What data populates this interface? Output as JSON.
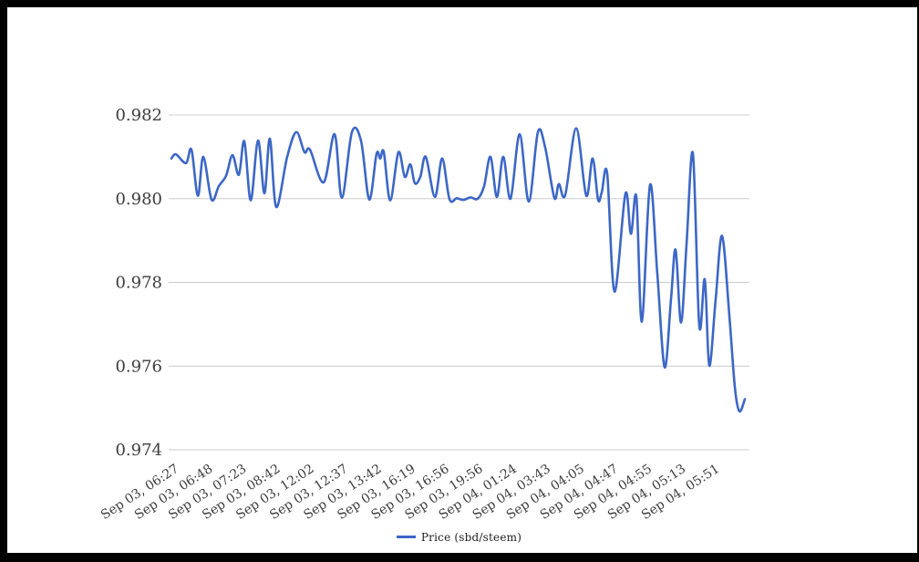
{
  "window": {
    "frame_color": "#000000",
    "canvas_background": "#ffffff"
  },
  "style": {
    "axis_label_color": "#3d3d3d",
    "grid_color": "#cccccc",
    "legend_text_color": "#222222"
  },
  "chart_data": {
    "type": "line",
    "title": "",
    "xlabel": "",
    "ylabel": "",
    "grid": true,
    "legend_position": "bottom",
    "ylim": [
      0.974,
      0.982
    ],
    "y_ticks": [
      "0.974",
      "0.976",
      "0.978",
      "0.980",
      "0.982"
    ],
    "x_tick_labels": [
      "Sep 03, 06:27",
      "Sep 03, 06:48",
      "Sep 03, 07:23",
      "Sep 03, 08:42",
      "Sep 03, 12:02",
      "Sep 03, 12:37",
      "Sep 03, 13:42",
      "Sep 03, 16:19",
      "Sep 03, 16:56",
      "Sep 03, 19:56",
      "Sep 04, 01:24",
      "Sep 04, 03:43",
      "Sep 04, 04:05",
      "Sep 04, 04:47",
      "Sep 04, 04:55",
      "Sep 04, 05:13",
      "Sep 04, 05:51"
    ],
    "series": [
      {
        "name": "Price (sbd/steem)",
        "color": "#3d67c6",
        "points": [
          [
            0.0,
            0.98096
          ],
          [
            0.0079,
            0.98106
          ],
          [
            0.0254,
            0.98085
          ],
          [
            0.035,
            0.98117
          ],
          [
            0.0461,
            0.98007
          ],
          [
            0.0556,
            0.981
          ],
          [
            0.07,
            0.97998
          ],
          [
            0.0827,
            0.9803
          ],
          [
            0.0954,
            0.98055
          ],
          [
            0.1065,
            0.98104
          ],
          [
            0.1177,
            0.98057
          ],
          [
            0.1272,
            0.98137
          ],
          [
            0.1383,
            0.97996
          ],
          [
            0.151,
            0.98139
          ],
          [
            0.1622,
            0.98013
          ],
          [
            0.1717,
            0.98143
          ],
          [
            0.1828,
            0.9798
          ],
          [
            0.2019,
            0.981
          ],
          [
            0.2178,
            0.98159
          ],
          [
            0.2321,
            0.98111
          ],
          [
            0.2416,
            0.98117
          ],
          [
            0.2655,
            0.98039
          ],
          [
            0.2846,
            0.98154
          ],
          [
            0.2973,
            0.98002
          ],
          [
            0.3148,
            0.98159
          ],
          [
            0.3307,
            0.98138
          ],
          [
            0.345,
            0.97998
          ],
          [
            0.3577,
            0.98107
          ],
          [
            0.3641,
            0.98096
          ],
          [
            0.3704,
            0.98111
          ],
          [
            0.3816,
            0.97996
          ],
          [
            0.3959,
            0.98111
          ],
          [
            0.407,
            0.98052
          ],
          [
            0.4166,
            0.98082
          ],
          [
            0.4245,
            0.98037
          ],
          [
            0.434,
            0.98052
          ],
          [
            0.4436,
            0.981
          ],
          [
            0.4595,
            0.98004
          ],
          [
            0.4722,
            0.98096
          ],
          [
            0.4849,
            0.97999
          ],
          [
            0.4976,
            0.98001
          ],
          [
            0.5087,
            0.97997
          ],
          [
            0.5215,
            0.98003
          ],
          [
            0.5342,
            0.98
          ],
          [
            0.5453,
            0.9803
          ],
          [
            0.5564,
            0.981
          ],
          [
            0.5676,
            0.98004
          ],
          [
            0.5787,
            0.981
          ],
          [
            0.5914,
            0.98
          ],
          [
            0.6073,
            0.98154
          ],
          [
            0.6232,
            0.97993
          ],
          [
            0.6391,
            0.98159
          ],
          [
            0.6518,
            0.98122
          ],
          [
            0.6677,
            0.98002
          ],
          [
            0.6757,
            0.98035
          ],
          [
            0.6868,
            0.98009
          ],
          [
            0.7059,
            0.98168
          ],
          [
            0.7234,
            0.98007
          ],
          [
            0.7345,
            0.98096
          ],
          [
            0.744,
            0.97998
          ],
          [
            0.7504,
            0.98015
          ],
          [
            0.7599,
            0.9806
          ],
          [
            0.7726,
            0.97778
          ],
          [
            0.7917,
            0.98012
          ],
          [
            0.8013,
            0.97916
          ],
          [
            0.8108,
            0.98004
          ],
          [
            0.8203,
            0.97706
          ],
          [
            0.8346,
            0.98033
          ],
          [
            0.8474,
            0.9782
          ],
          [
            0.8601,
            0.97597
          ],
          [
            0.8712,
            0.9776
          ],
          [
            0.8792,
            0.97878
          ],
          [
            0.8887,
            0.97704
          ],
          [
            0.8983,
            0.9789
          ],
          [
            0.9094,
            0.98108
          ],
          [
            0.9205,
            0.97696
          ],
          [
            0.9301,
            0.97807
          ],
          [
            0.938,
            0.97601
          ],
          [
            0.9491,
            0.9776
          ],
          [
            0.9603,
            0.97911
          ],
          [
            0.973,
            0.9772
          ],
          [
            0.9825,
            0.9755
          ],
          [
            0.9905,
            0.97492
          ],
          [
            1.0,
            0.97521
          ]
        ]
      }
    ]
  }
}
